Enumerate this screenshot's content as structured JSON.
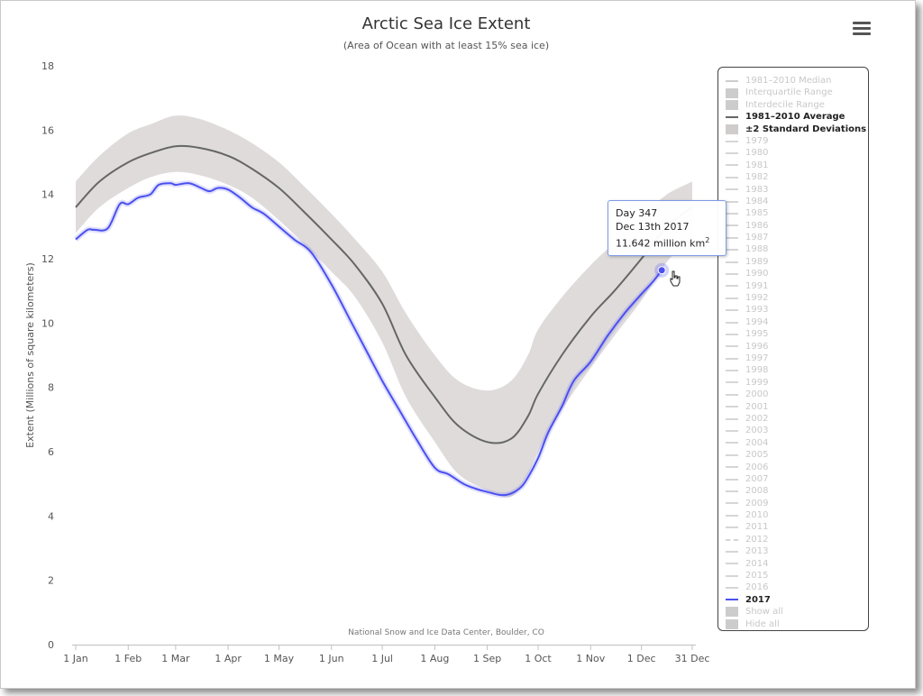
{
  "chart_data": {
    "type": "area",
    "title": "Arctic Sea Ice Extent",
    "subtitle": "(Area of Ocean with at least 15% sea ice)",
    "ylabel": "Extent (Millions of square kilometers)",
    "xlabel": "",
    "ylim": [
      0,
      18
    ],
    "yticks": [
      0,
      2,
      4,
      6,
      8,
      10,
      12,
      14,
      16,
      18
    ],
    "xlim_day": [
      1,
      365
    ],
    "xticks": [
      {
        "label": "1 Jan",
        "day": 1
      },
      {
        "label": "1 Feb",
        "day": 32
      },
      {
        "label": "1 Mar",
        "day": 60
      },
      {
        "label": "1 Apr",
        "day": 91
      },
      {
        "label": "1 May",
        "day": 121
      },
      {
        "label": "1 Jun",
        "day": 152
      },
      {
        "label": "1 Jul",
        "day": 182
      },
      {
        "label": "1 Aug",
        "day": 213
      },
      {
        "label": "1 Sep",
        "day": 244
      },
      {
        "label": "1 Oct",
        "day": 274
      },
      {
        "label": "1 Nov",
        "day": 305
      },
      {
        "label": "1 Dec",
        "day": 335
      },
      {
        "label": "31 Dec",
        "day": 365
      }
    ],
    "credit": "National Snow and Ice Data Center, Boulder, CO",
    "grid": false,
    "legend_position": "right",
    "series": [
      {
        "name": "1981-2010 Average",
        "color": "#666666",
        "x": [
          1,
          15,
          32,
          46,
          60,
          74,
          91,
          105,
          121,
          135,
          152,
          166,
          182,
          196,
          213,
          227,
          244,
          258,
          268,
          274,
          288,
          305,
          319,
          335,
          350,
          365
        ],
        "y": [
          13.6,
          14.4,
          15.0,
          15.3,
          15.5,
          15.45,
          15.2,
          14.8,
          14.2,
          13.5,
          12.6,
          11.8,
          10.6,
          9.0,
          7.7,
          6.8,
          6.3,
          6.4,
          7.1,
          7.8,
          9.0,
          10.2,
          11.0,
          12.0,
          13.0,
          13.6
        ]
      },
      {
        "name": "±2 Standard Deviations",
        "color": "#d9d5d5",
        "x": [
          1,
          15,
          32,
          46,
          60,
          74,
          91,
          105,
          121,
          135,
          152,
          166,
          182,
          196,
          213,
          227,
          244,
          258,
          268,
          274,
          288,
          305,
          319,
          335,
          350,
          365
        ],
        "upper": [
          14.4,
          15.2,
          15.9,
          16.2,
          16.45,
          16.35,
          16.0,
          15.6,
          15.0,
          14.3,
          13.4,
          12.6,
          11.6,
          10.3,
          9.0,
          8.2,
          7.9,
          8.2,
          9.0,
          9.8,
          10.8,
          11.8,
          12.5,
          13.3,
          14.0,
          14.4
        ],
        "lower": [
          12.8,
          13.6,
          14.2,
          14.55,
          14.7,
          14.6,
          14.3,
          13.9,
          13.2,
          12.5,
          11.6,
          10.8,
          9.4,
          7.7,
          6.3,
          5.3,
          4.8,
          4.6,
          5.3,
          6.0,
          7.3,
          8.6,
          9.6,
          10.7,
          11.9,
          12.7
        ]
      },
      {
        "name": "2017",
        "color": "#4b50f0",
        "x": [
          1,
          8,
          12,
          20,
          27,
          32,
          38,
          45,
          50,
          57,
          60,
          68,
          75,
          80,
          85,
          91,
          98,
          105,
          112,
          121,
          130,
          140,
          152,
          162,
          172,
          182,
          192,
          202,
          213,
          221,
          230,
          237,
          244,
          252,
          258,
          264,
          268,
          274,
          280,
          288,
          295,
          305,
          315,
          325,
          335,
          342,
          347
        ],
        "y": [
          12.6,
          12.9,
          12.9,
          12.95,
          13.7,
          13.7,
          13.9,
          14.0,
          14.3,
          14.35,
          14.3,
          14.35,
          14.2,
          14.1,
          14.2,
          14.15,
          13.9,
          13.6,
          13.4,
          13.0,
          12.6,
          12.2,
          11.2,
          10.2,
          9.2,
          8.2,
          7.3,
          6.4,
          5.5,
          5.3,
          5.0,
          4.85,
          4.75,
          4.65,
          4.7,
          4.9,
          5.2,
          5.8,
          6.6,
          7.4,
          8.2,
          8.8,
          9.6,
          10.3,
          10.9,
          11.3,
          11.642
        ]
      }
    ],
    "highlight": {
      "day": 347,
      "value": 11.642
    }
  },
  "tooltip": {
    "line1": "Day 347",
    "line2": "Dec 13th 2017",
    "line3_value": "11.642 million km",
    "line3_sup": "2"
  },
  "legend": [
    {
      "label": "1981–2010 Median",
      "active": false,
      "symbol": "line",
      "color": "#cccccc"
    },
    {
      "label": "Interquartile Range",
      "active": false,
      "symbol": "box",
      "color": "#cccccc"
    },
    {
      "label": "Interdecile Range",
      "active": false,
      "symbol": "box",
      "color": "#cccccc"
    },
    {
      "label": "1981–2010 Average",
      "active": true,
      "symbol": "line",
      "color": "#666666"
    },
    {
      "label": "±2 Standard Deviations",
      "active": true,
      "symbol": "box",
      "color": "#d0cccc"
    },
    {
      "label": "1979",
      "active": false,
      "symbol": "line",
      "color": "#d6d6d6"
    },
    {
      "label": "1980",
      "active": false,
      "symbol": "line",
      "color": "#d6d6d6"
    },
    {
      "label": "1981",
      "active": false,
      "symbol": "line",
      "color": "#d6d6d6"
    },
    {
      "label": "1982",
      "active": false,
      "symbol": "line",
      "color": "#d6d6d6"
    },
    {
      "label": "1983",
      "active": false,
      "symbol": "line",
      "color": "#d6d6d6"
    },
    {
      "label": "1984",
      "active": false,
      "symbol": "line",
      "color": "#d6d6d6"
    },
    {
      "label": "1985",
      "active": false,
      "symbol": "line",
      "color": "#d6d6d6"
    },
    {
      "label": "1986",
      "active": false,
      "symbol": "line",
      "color": "#d6d6d6"
    },
    {
      "label": "1987",
      "active": false,
      "symbol": "line",
      "color": "#d6d6d6"
    },
    {
      "label": "1988",
      "active": false,
      "symbol": "line",
      "color": "#d6d6d6"
    },
    {
      "label": "1989",
      "active": false,
      "symbol": "line",
      "color": "#d6d6d6"
    },
    {
      "label": "1990",
      "active": false,
      "symbol": "line",
      "color": "#d6d6d6"
    },
    {
      "label": "1991",
      "active": false,
      "symbol": "line",
      "color": "#d6d6d6"
    },
    {
      "label": "1992",
      "active": false,
      "symbol": "line",
      "color": "#d6d6d6"
    },
    {
      "label": "1993",
      "active": false,
      "symbol": "line",
      "color": "#d6d6d6"
    },
    {
      "label": "1994",
      "active": false,
      "symbol": "line",
      "color": "#d6d6d6"
    },
    {
      "label": "1995",
      "active": false,
      "symbol": "line",
      "color": "#d6d6d6"
    },
    {
      "label": "1996",
      "active": false,
      "symbol": "line",
      "color": "#d6d6d6"
    },
    {
      "label": "1997",
      "active": false,
      "symbol": "line",
      "color": "#d6d6d6"
    },
    {
      "label": "1998",
      "active": false,
      "symbol": "line",
      "color": "#d6d6d6"
    },
    {
      "label": "1999",
      "active": false,
      "symbol": "line",
      "color": "#d6d6d6"
    },
    {
      "label": "2000",
      "active": false,
      "symbol": "line",
      "color": "#d6d6d6"
    },
    {
      "label": "2001",
      "active": false,
      "symbol": "line",
      "color": "#d6d6d6"
    },
    {
      "label": "2002",
      "active": false,
      "symbol": "line",
      "color": "#d6d6d6"
    },
    {
      "label": "2003",
      "active": false,
      "symbol": "line",
      "color": "#d6d6d6"
    },
    {
      "label": "2004",
      "active": false,
      "symbol": "line",
      "color": "#d6d6d6"
    },
    {
      "label": "2005",
      "active": false,
      "symbol": "line",
      "color": "#d6d6d6"
    },
    {
      "label": "2006",
      "active": false,
      "symbol": "line",
      "color": "#d6d6d6"
    },
    {
      "label": "2007",
      "active": false,
      "symbol": "line",
      "color": "#d6d6d6"
    },
    {
      "label": "2008",
      "active": false,
      "symbol": "line",
      "color": "#d6d6d6"
    },
    {
      "label": "2009",
      "active": false,
      "symbol": "line",
      "color": "#d6d6d6"
    },
    {
      "label": "2010",
      "active": false,
      "symbol": "line",
      "color": "#d6d6d6"
    },
    {
      "label": "2011",
      "active": false,
      "symbol": "line",
      "color": "#d6d6d6"
    },
    {
      "label": "2012",
      "active": false,
      "symbol": "dash",
      "color": "#d6d6d6"
    },
    {
      "label": "2013",
      "active": false,
      "symbol": "line",
      "color": "#d6d6d6"
    },
    {
      "label": "2014",
      "active": false,
      "symbol": "line",
      "color": "#d6d6d6"
    },
    {
      "label": "2015",
      "active": false,
      "symbol": "line",
      "color": "#d6d6d6"
    },
    {
      "label": "2016",
      "active": false,
      "symbol": "line",
      "color": "#d6d6d6"
    },
    {
      "label": "2017",
      "active": true,
      "symbol": "line",
      "color": "#4b50f0"
    },
    {
      "label": "Show all",
      "active": false,
      "symbol": "box",
      "color": "#cccccc"
    },
    {
      "label": "Hide all",
      "active": false,
      "symbol": "box",
      "color": "#cccccc"
    }
  ]
}
